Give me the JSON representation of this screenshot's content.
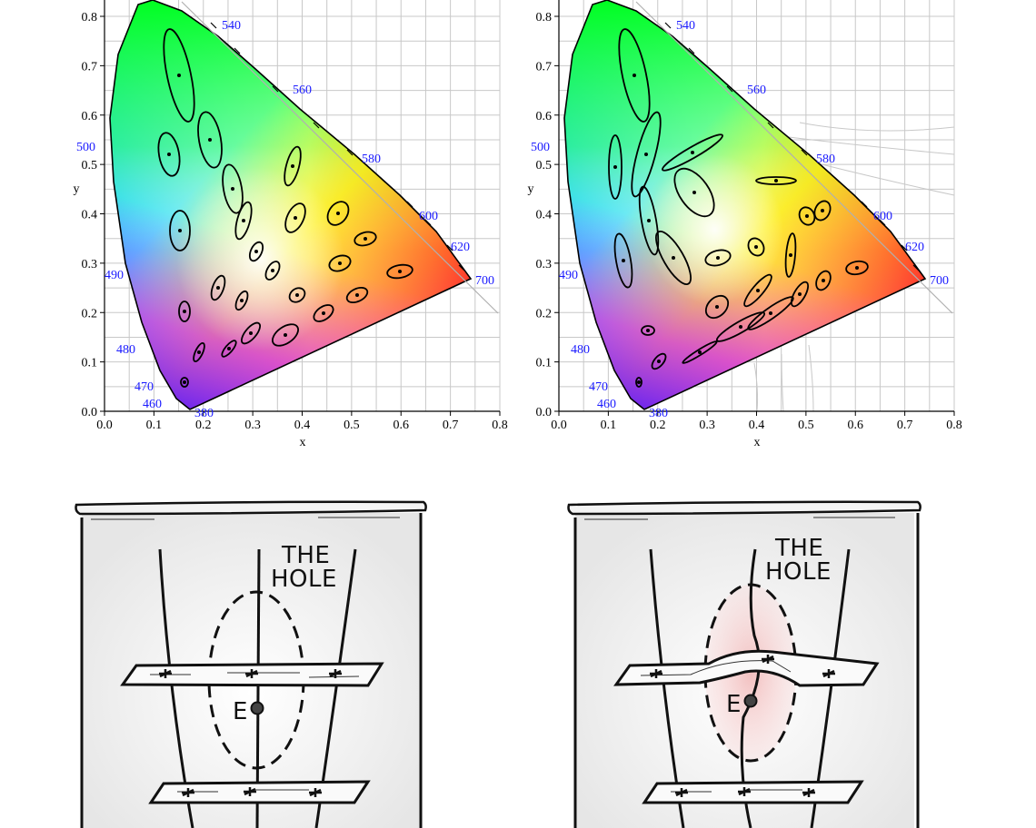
{
  "colors": {
    "wavelength_label": "#1a1aff",
    "grid": "#c8c8c8",
    "ink": "#111111",
    "hole_tint": "#f3c9c9"
  },
  "diagrams": [
    {
      "id": "cie-original",
      "x_axis_label": "x",
      "y_axis_label": "y",
      "x_ticks": [
        "0.0",
        "0.1",
        "0.2",
        "0.3",
        "0.4",
        "0.5",
        "0.6",
        "0.7",
        "0.8"
      ],
      "y_ticks": [
        "0.0",
        "0.1",
        "0.2",
        "0.3",
        "0.4",
        "0.5",
        "0.6",
        "0.7",
        "0.8"
      ],
      "wavelength_labels": [
        "380",
        "460",
        "470",
        "480",
        "490",
        "500",
        "540",
        "560",
        "580",
        "600",
        "620",
        "700"
      ],
      "ellipses": "macadam-regular"
    },
    {
      "id": "cie-warped",
      "x_axis_label": "x",
      "y_axis_label": "y",
      "x_ticks": [
        "0.0",
        "0.1",
        "0.2",
        "0.3",
        "0.4",
        "0.5",
        "0.6",
        "0.7",
        "0.8"
      ],
      "y_ticks": [
        "0.0",
        "0.1",
        "0.2",
        "0.3",
        "0.4",
        "0.5",
        "0.6",
        "0.7",
        "0.8"
      ],
      "wavelength_labels": [
        "380",
        "460",
        "470",
        "480",
        "490",
        "500",
        "540",
        "560",
        "580",
        "600",
        "620",
        "700"
      ],
      "ellipses": "macadam-distorted"
    }
  ],
  "sketches": [
    {
      "id": "hole-flat",
      "title_line1": "THE",
      "title_line2": "HOLE",
      "point_label": "E",
      "warped": false
    },
    {
      "id": "hole-warped",
      "title_line1": "THE",
      "title_line2": "HOLE",
      "point_label": "E",
      "warped": true
    }
  ]
}
